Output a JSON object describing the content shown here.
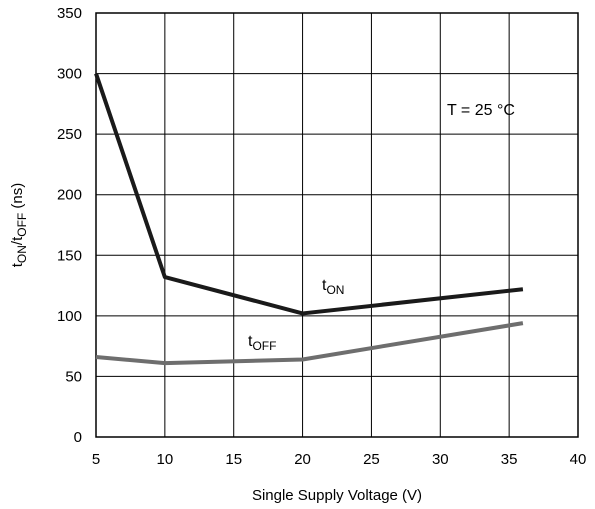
{
  "chart_data": {
    "type": "line",
    "xlabel": "Single Supply Voltage (V)",
    "ylabel": {
      "t1": "t",
      "s1": "ON",
      "mid": "/t",
      "s2": "OFF",
      "unit": " (ns)"
    },
    "xlim": [
      5,
      40
    ],
    "ylim": [
      0,
      350
    ],
    "x_ticks": [
      5,
      10,
      15,
      20,
      25,
      30,
      35,
      40
    ],
    "y_ticks": [
      0,
      50,
      100,
      150,
      200,
      250,
      300,
      350
    ],
    "grid": true,
    "annotation": "T = 25 °C",
    "series": [
      {
        "label_main": "t",
        "label_sub": "ON",
        "color": "#1a1a1a",
        "x": [
          5,
          10,
          20,
          36
        ],
        "y": [
          300,
          132,
          102,
          122
        ]
      },
      {
        "label_main": "t",
        "label_sub": "OFF",
        "color": "#6e6e6e",
        "x": [
          5,
          10,
          20,
          36
        ],
        "y": [
          66,
          61,
          64,
          94
        ]
      }
    ]
  }
}
